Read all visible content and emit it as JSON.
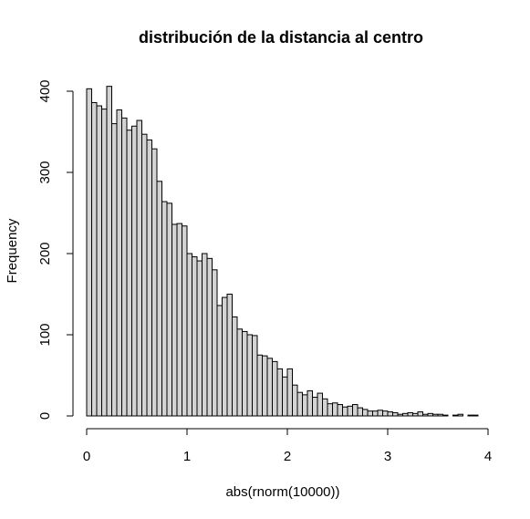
{
  "chart_data": {
    "type": "bar",
    "title": "distribución de la distancia al centro",
    "xlabel": "abs(rnorm(10000))",
    "ylabel": "Frequency",
    "bin_width": 0.05,
    "bin_start": 0,
    "xlim": [
      0,
      4
    ],
    "ylim": [
      0,
      410
    ],
    "x_ticks": [
      0,
      1,
      2,
      3,
      4
    ],
    "y_ticks": [
      0,
      100,
      200,
      300,
      400
    ],
    "bar_fill": "#d3d3d3",
    "bar_stroke": "#000000",
    "values": [
      403,
      386,
      382,
      378,
      406,
      360,
      377,
      367,
      352,
      357,
      364,
      347,
      340,
      329,
      289,
      264,
      262,
      236,
      237,
      234,
      200,
      196,
      191,
      200,
      194,
      180,
      136,
      146,
      150,
      122,
      107,
      104,
      100,
      99,
      75,
      74,
      71,
      67,
      58,
      48,
      58,
      38,
      29,
      26,
      31,
      23,
      28,
      21,
      15,
      16,
      14,
      11,
      12,
      14,
      10,
      8,
      6,
      6,
      7,
      6,
      5,
      4,
      2,
      3,
      4,
      3,
      5,
      2,
      3,
      2,
      2,
      1,
      0,
      1,
      2,
      0,
      1,
      1
    ]
  }
}
